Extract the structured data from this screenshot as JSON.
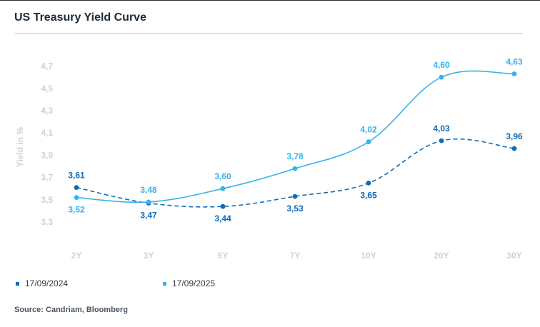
{
  "title": "US Treasury Yield Curve",
  "source": "Source: Candriam, Bloomberg",
  "colors": {
    "series_2024": "#0f6bb5",
    "series_2025": "#35b3ea",
    "axis_text": "#cdd2d8",
    "title": "#1f2a37"
  },
  "chart_data": {
    "type": "line",
    "title": "US Treasury Yield Curve",
    "xlabel": "",
    "ylabel": "Yield in %",
    "categories": [
      "2Y",
      "3Y",
      "5Y",
      "7Y",
      "10Y",
      "20Y",
      "30Y"
    ],
    "y_ticks": [
      "3,3",
      "3,5",
      "3,7",
      "3,9",
      "4,1",
      "4,3",
      "4,5",
      "4,7"
    ],
    "ylim": [
      3.2,
      4.8
    ],
    "grid": false,
    "legend_position": "bottom-left",
    "series": [
      {
        "name": "17/09/2024",
        "style": "dashed",
        "color": "#0f6bb5",
        "values": [
          3.61,
          3.47,
          3.44,
          3.53,
          3.65,
          4.03,
          3.96
        ],
        "labels": [
          "3,61",
          "3,47",
          "3,44",
          "3,53",
          "3,65",
          "4,03",
          "3,96"
        ]
      },
      {
        "name": "17/09/2025",
        "style": "solid",
        "color": "#35b3ea",
        "values": [
          3.52,
          3.48,
          3.6,
          3.78,
          4.02,
          4.6,
          4.63
        ],
        "labels": [
          "3,52",
          "3,48",
          "3,60",
          "3,78",
          "4,02",
          "4,60",
          "4,63"
        ]
      }
    ]
  },
  "legend": [
    {
      "label": "17/09/2024",
      "color": "#0f6bb5"
    },
    {
      "label": "17/09/2025",
      "color": "#35b3ea"
    }
  ]
}
